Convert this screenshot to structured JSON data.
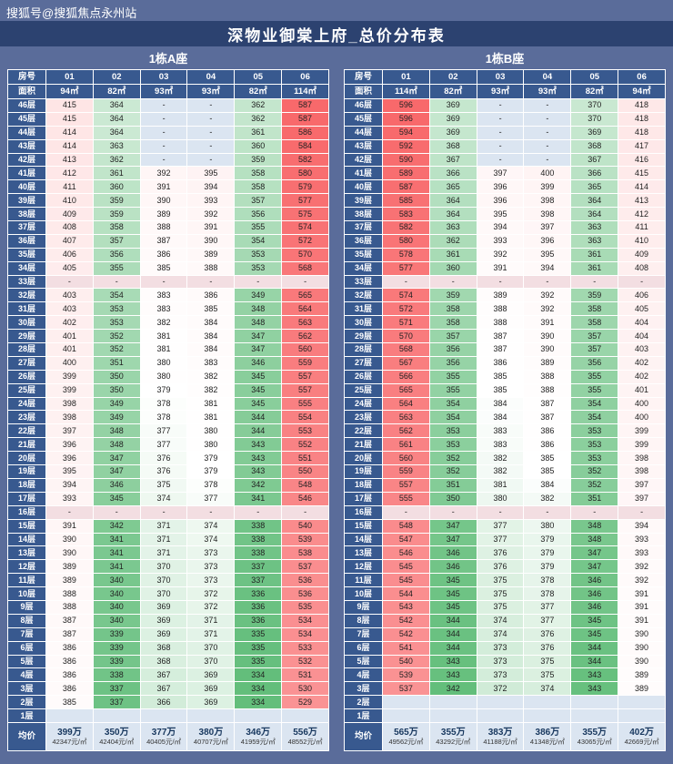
{
  "page": {
    "watermark": "搜狐号@搜狐焦点永州站",
    "title": "深物业御棠上府_总价分布表"
  },
  "colors": {
    "page_bg": "#5a6c9a",
    "title_bg": "#2c4270",
    "header_bg": "#38598f",
    "empty_bg": "#dbe5f1",
    "dash_row_bg": "#f3dee2",
    "high": "#f8696b",
    "low": "#63be7b",
    "avg_price_color": "#17375e"
  },
  "chart_data": [
    {
      "type": "table",
      "title": "1栋A座",
      "corner_row1": "房号",
      "corner_row2": "面积",
      "room_numbers": [
        "01",
        "02",
        "03",
        "04",
        "05",
        "06"
      ],
      "areas": [
        "94㎡",
        "82㎡",
        "93㎡",
        "93㎡",
        "82㎡",
        "114㎡"
      ],
      "avg_label": "均价",
      "avg_prices": [
        "399万",
        "350万",
        "377万",
        "380万",
        "346万",
        "556万"
      ],
      "avg_unit_prices": [
        "42347元/㎡",
        "42404元/㎡",
        "40405元/㎡",
        "40707元/㎡",
        "41959元/㎡",
        "48552元/㎡"
      ],
      "rows": [
        {
          "floor": "46层",
          "values": [
            "415",
            "364",
            "-",
            "-",
            "362",
            "587"
          ]
        },
        {
          "floor": "45层",
          "values": [
            "415",
            "364",
            "-",
            "-",
            "362",
            "587"
          ]
        },
        {
          "floor": "44层",
          "values": [
            "414",
            "364",
            "-",
            "-",
            "361",
            "586"
          ]
        },
        {
          "floor": "43层",
          "values": [
            "414",
            "363",
            "-",
            "-",
            "360",
            "584"
          ]
        },
        {
          "floor": "42层",
          "values": [
            "413",
            "362",
            "-",
            "-",
            "359",
            "582"
          ]
        },
        {
          "floor": "41层",
          "values": [
            "412",
            "361",
            "392",
            "395",
            "358",
            "580"
          ]
        },
        {
          "floor": "40层",
          "values": [
            "411",
            "360",
            "391",
            "394",
            "358",
            "579"
          ]
        },
        {
          "floor": "39层",
          "values": [
            "410",
            "359",
            "390",
            "393",
            "357",
            "577"
          ]
        },
        {
          "floor": "38层",
          "values": [
            "409",
            "359",
            "389",
            "392",
            "356",
            "575"
          ]
        },
        {
          "floor": "37层",
          "values": [
            "408",
            "358",
            "388",
            "391",
            "355",
            "574"
          ]
        },
        {
          "floor": "36层",
          "values": [
            "407",
            "357",
            "387",
            "390",
            "354",
            "572"
          ]
        },
        {
          "floor": "35层",
          "values": [
            "406",
            "356",
            "386",
            "389",
            "353",
            "570"
          ]
        },
        {
          "floor": "34层",
          "values": [
            "405",
            "355",
            "385",
            "388",
            "353",
            "568"
          ]
        },
        {
          "floor": "33层",
          "values": [
            "-",
            "-",
            "-",
            "-",
            "-",
            "-"
          ]
        },
        {
          "floor": "32层",
          "values": [
            "403",
            "354",
            "383",
            "386",
            "349",
            "565"
          ]
        },
        {
          "floor": "31层",
          "values": [
            "403",
            "353",
            "383",
            "385",
            "348",
            "564"
          ]
        },
        {
          "floor": "30层",
          "values": [
            "402",
            "353",
            "382",
            "384",
            "348",
            "563"
          ]
        },
        {
          "floor": "29层",
          "values": [
            "401",
            "352",
            "381",
            "384",
            "347",
            "562"
          ]
        },
        {
          "floor": "28层",
          "values": [
            "401",
            "352",
            "381",
            "384",
            "347",
            "560"
          ]
        },
        {
          "floor": "27层",
          "values": [
            "400",
            "351",
            "380",
            "383",
            "346",
            "559"
          ]
        },
        {
          "floor": "26层",
          "values": [
            "399",
            "350",
            "380",
            "382",
            "345",
            "557"
          ]
        },
        {
          "floor": "25层",
          "values": [
            "399",
            "350",
            "379",
            "382",
            "345",
            "557"
          ]
        },
        {
          "floor": "24层",
          "values": [
            "398",
            "349",
            "378",
            "381",
            "345",
            "555"
          ]
        },
        {
          "floor": "23层",
          "values": [
            "398",
            "349",
            "378",
            "381",
            "344",
            "554"
          ]
        },
        {
          "floor": "22层",
          "values": [
            "397",
            "348",
            "377",
            "380",
            "344",
            "553"
          ]
        },
        {
          "floor": "21层",
          "values": [
            "396",
            "348",
            "377",
            "380",
            "343",
            "552"
          ]
        },
        {
          "floor": "20层",
          "values": [
            "396",
            "347",
            "376",
            "379",
            "343",
            "551"
          ]
        },
        {
          "floor": "19层",
          "values": [
            "395",
            "347",
            "376",
            "379",
            "343",
            "550"
          ]
        },
        {
          "floor": "18层",
          "values": [
            "394",
            "346",
            "375",
            "378",
            "342",
            "548"
          ]
        },
        {
          "floor": "17层",
          "values": [
            "393",
            "345",
            "374",
            "377",
            "341",
            "546"
          ]
        },
        {
          "floor": "16层",
          "values": [
            "-",
            "-",
            "-",
            "-",
            "-",
            "-"
          ]
        },
        {
          "floor": "15层",
          "values": [
            "391",
            "342",
            "371",
            "374",
            "338",
            "540"
          ]
        },
        {
          "floor": "14层",
          "values": [
            "390",
            "341",
            "371",
            "374",
            "338",
            "539"
          ]
        },
        {
          "floor": "13层",
          "values": [
            "390",
            "341",
            "371",
            "373",
            "338",
            "538"
          ]
        },
        {
          "floor": "12层",
          "values": [
            "389",
            "341",
            "370",
            "373",
            "337",
            "537"
          ]
        },
        {
          "floor": "11层",
          "values": [
            "389",
            "340",
            "370",
            "373",
            "337",
            "536"
          ]
        },
        {
          "floor": "10层",
          "values": [
            "388",
            "340",
            "370",
            "372",
            "336",
            "536"
          ]
        },
        {
          "floor": "9层",
          "values": [
            "388",
            "340",
            "369",
            "372",
            "336",
            "535"
          ]
        },
        {
          "floor": "8层",
          "values": [
            "387",
            "340",
            "369",
            "371",
            "336",
            "534"
          ]
        },
        {
          "floor": "7层",
          "values": [
            "387",
            "339",
            "369",
            "371",
            "335",
            "534"
          ]
        },
        {
          "floor": "6层",
          "values": [
            "386",
            "339",
            "368",
            "370",
            "335",
            "533"
          ]
        },
        {
          "floor": "5层",
          "values": [
            "386",
            "339",
            "368",
            "370",
            "335",
            "532"
          ]
        },
        {
          "floor": "4层",
          "values": [
            "386",
            "338",
            "367",
            "369",
            "334",
            "531"
          ]
        },
        {
          "floor": "3层",
          "values": [
            "386",
            "337",
            "367",
            "369",
            "334",
            "530"
          ]
        },
        {
          "floor": "2层",
          "values": [
            "385",
            "337",
            "366",
            "369",
            "334",
            "529"
          ]
        },
        {
          "floor": "1层",
          "values": [
            "",
            "",
            "",
            "",
            "",
            ""
          ]
        }
      ]
    },
    {
      "type": "table",
      "title": "1栋B座",
      "corner_row1": "房号",
      "corner_row2": "面积",
      "room_numbers": [
        "01",
        "02",
        "03",
        "04",
        "05",
        "06"
      ],
      "areas": [
        "114㎡",
        "82㎡",
        "93㎡",
        "93㎡",
        "82㎡",
        "94㎡"
      ],
      "avg_label": "均价",
      "avg_prices": [
        "565万",
        "355万",
        "383万",
        "386万",
        "355万",
        "402万"
      ],
      "avg_unit_prices": [
        "49562元/㎡",
        "43292元/㎡",
        "41188元/㎡",
        "41348元/㎡",
        "43065元/㎡",
        "42669元/㎡"
      ],
      "rows": [
        {
          "floor": "46层",
          "values": [
            "596",
            "369",
            "-",
            "-",
            "370",
            "418"
          ]
        },
        {
          "floor": "45层",
          "values": [
            "596",
            "369",
            "-",
            "-",
            "370",
            "418"
          ]
        },
        {
          "floor": "44层",
          "values": [
            "594",
            "369",
            "-",
            "-",
            "369",
            "418"
          ]
        },
        {
          "floor": "43层",
          "values": [
            "592",
            "368",
            "-",
            "-",
            "368",
            "417"
          ]
        },
        {
          "floor": "42层",
          "values": [
            "590",
            "367",
            "-",
            "-",
            "367",
            "416"
          ]
        },
        {
          "floor": "41层",
          "values": [
            "589",
            "366",
            "397",
            "400",
            "366",
            "415"
          ]
        },
        {
          "floor": "40层",
          "values": [
            "587",
            "365",
            "396",
            "399",
            "365",
            "414"
          ]
        },
        {
          "floor": "39层",
          "values": [
            "585",
            "364",
            "396",
            "398",
            "364",
            "413"
          ]
        },
        {
          "floor": "38层",
          "values": [
            "583",
            "364",
            "395",
            "398",
            "364",
            "412"
          ]
        },
        {
          "floor": "37层",
          "values": [
            "582",
            "363",
            "394",
            "397",
            "363",
            "411"
          ]
        },
        {
          "floor": "36层",
          "values": [
            "580",
            "362",
            "393",
            "396",
            "363",
            "410"
          ]
        },
        {
          "floor": "35层",
          "values": [
            "578",
            "361",
            "392",
            "395",
            "361",
            "409"
          ]
        },
        {
          "floor": "34层",
          "values": [
            "577",
            "360",
            "391",
            "394",
            "361",
            "408"
          ]
        },
        {
          "floor": "33层",
          "values": [
            "-",
            "-",
            "-",
            "-",
            "-",
            "-"
          ]
        },
        {
          "floor": "32层",
          "values": [
            "574",
            "359",
            "389",
            "392",
            "359",
            "406"
          ]
        },
        {
          "floor": "31层",
          "values": [
            "572",
            "358",
            "388",
            "392",
            "358",
            "405"
          ]
        },
        {
          "floor": "30层",
          "values": [
            "571",
            "358",
            "388",
            "391",
            "358",
            "404"
          ]
        },
        {
          "floor": "29层",
          "values": [
            "570",
            "357",
            "387",
            "390",
            "357",
            "404"
          ]
        },
        {
          "floor": "28层",
          "values": [
            "568",
            "356",
            "387",
            "390",
            "357",
            "403"
          ]
        },
        {
          "floor": "27层",
          "values": [
            "567",
            "356",
            "386",
            "389",
            "356",
            "402"
          ]
        },
        {
          "floor": "26层",
          "values": [
            "566",
            "355",
            "385",
            "388",
            "355",
            "402"
          ]
        },
        {
          "floor": "25层",
          "values": [
            "565",
            "355",
            "385",
            "388",
            "355",
            "401"
          ]
        },
        {
          "floor": "24层",
          "values": [
            "564",
            "354",
            "384",
            "387",
            "354",
            "400"
          ]
        },
        {
          "floor": "23层",
          "values": [
            "563",
            "354",
            "384",
            "387",
            "354",
            "400"
          ]
        },
        {
          "floor": "22层",
          "values": [
            "562",
            "353",
            "383",
            "386",
            "353",
            "399"
          ]
        },
        {
          "floor": "21层",
          "values": [
            "561",
            "353",
            "383",
            "386",
            "353",
            "399"
          ]
        },
        {
          "floor": "20层",
          "values": [
            "560",
            "352",
            "382",
            "385",
            "353",
            "398"
          ]
        },
        {
          "floor": "19层",
          "values": [
            "559",
            "352",
            "382",
            "385",
            "352",
            "398"
          ]
        },
        {
          "floor": "18层",
          "values": [
            "557",
            "351",
            "381",
            "384",
            "352",
            "397"
          ]
        },
        {
          "floor": "17层",
          "values": [
            "555",
            "350",
            "380",
            "382",
            "351",
            "397"
          ]
        },
        {
          "floor": "16层",
          "values": [
            "-",
            "-",
            "-",
            "-",
            "-",
            "-"
          ]
        },
        {
          "floor": "15层",
          "values": [
            "548",
            "347",
            "377",
            "380",
            "348",
            "394"
          ]
        },
        {
          "floor": "14层",
          "values": [
            "547",
            "347",
            "377",
            "379",
            "348",
            "393"
          ]
        },
        {
          "floor": "13层",
          "values": [
            "546",
            "346",
            "376",
            "379",
            "347",
            "393"
          ]
        },
        {
          "floor": "12层",
          "values": [
            "545",
            "346",
            "376",
            "379",
            "347",
            "392"
          ]
        },
        {
          "floor": "11层",
          "values": [
            "545",
            "345",
            "375",
            "378",
            "346",
            "392"
          ]
        },
        {
          "floor": "10层",
          "values": [
            "544",
            "345",
            "375",
            "378",
            "346",
            "391"
          ]
        },
        {
          "floor": "9层",
          "values": [
            "543",
            "345",
            "375",
            "377",
            "346",
            "391"
          ]
        },
        {
          "floor": "8层",
          "values": [
            "542",
            "344",
            "374",
            "377",
            "345",
            "391"
          ]
        },
        {
          "floor": "7层",
          "values": [
            "542",
            "344",
            "374",
            "376",
            "345",
            "390"
          ]
        },
        {
          "floor": "6层",
          "values": [
            "541",
            "344",
            "373",
            "376",
            "344",
            "390"
          ]
        },
        {
          "floor": "5层",
          "values": [
            "540",
            "343",
            "373",
            "375",
            "344",
            "390"
          ]
        },
        {
          "floor": "4层",
          "values": [
            "539",
            "343",
            "373",
            "375",
            "343",
            "389"
          ]
        },
        {
          "floor": "3层",
          "values": [
            "537",
            "342",
            "372",
            "374",
            "343",
            "389"
          ]
        },
        {
          "floor": "2层",
          "values": [
            "",
            "",
            "",
            "",
            "",
            ""
          ]
        },
        {
          "floor": "1层",
          "values": [
            "",
            "",
            "",
            "",
            "",
            ""
          ]
        }
      ]
    }
  ]
}
